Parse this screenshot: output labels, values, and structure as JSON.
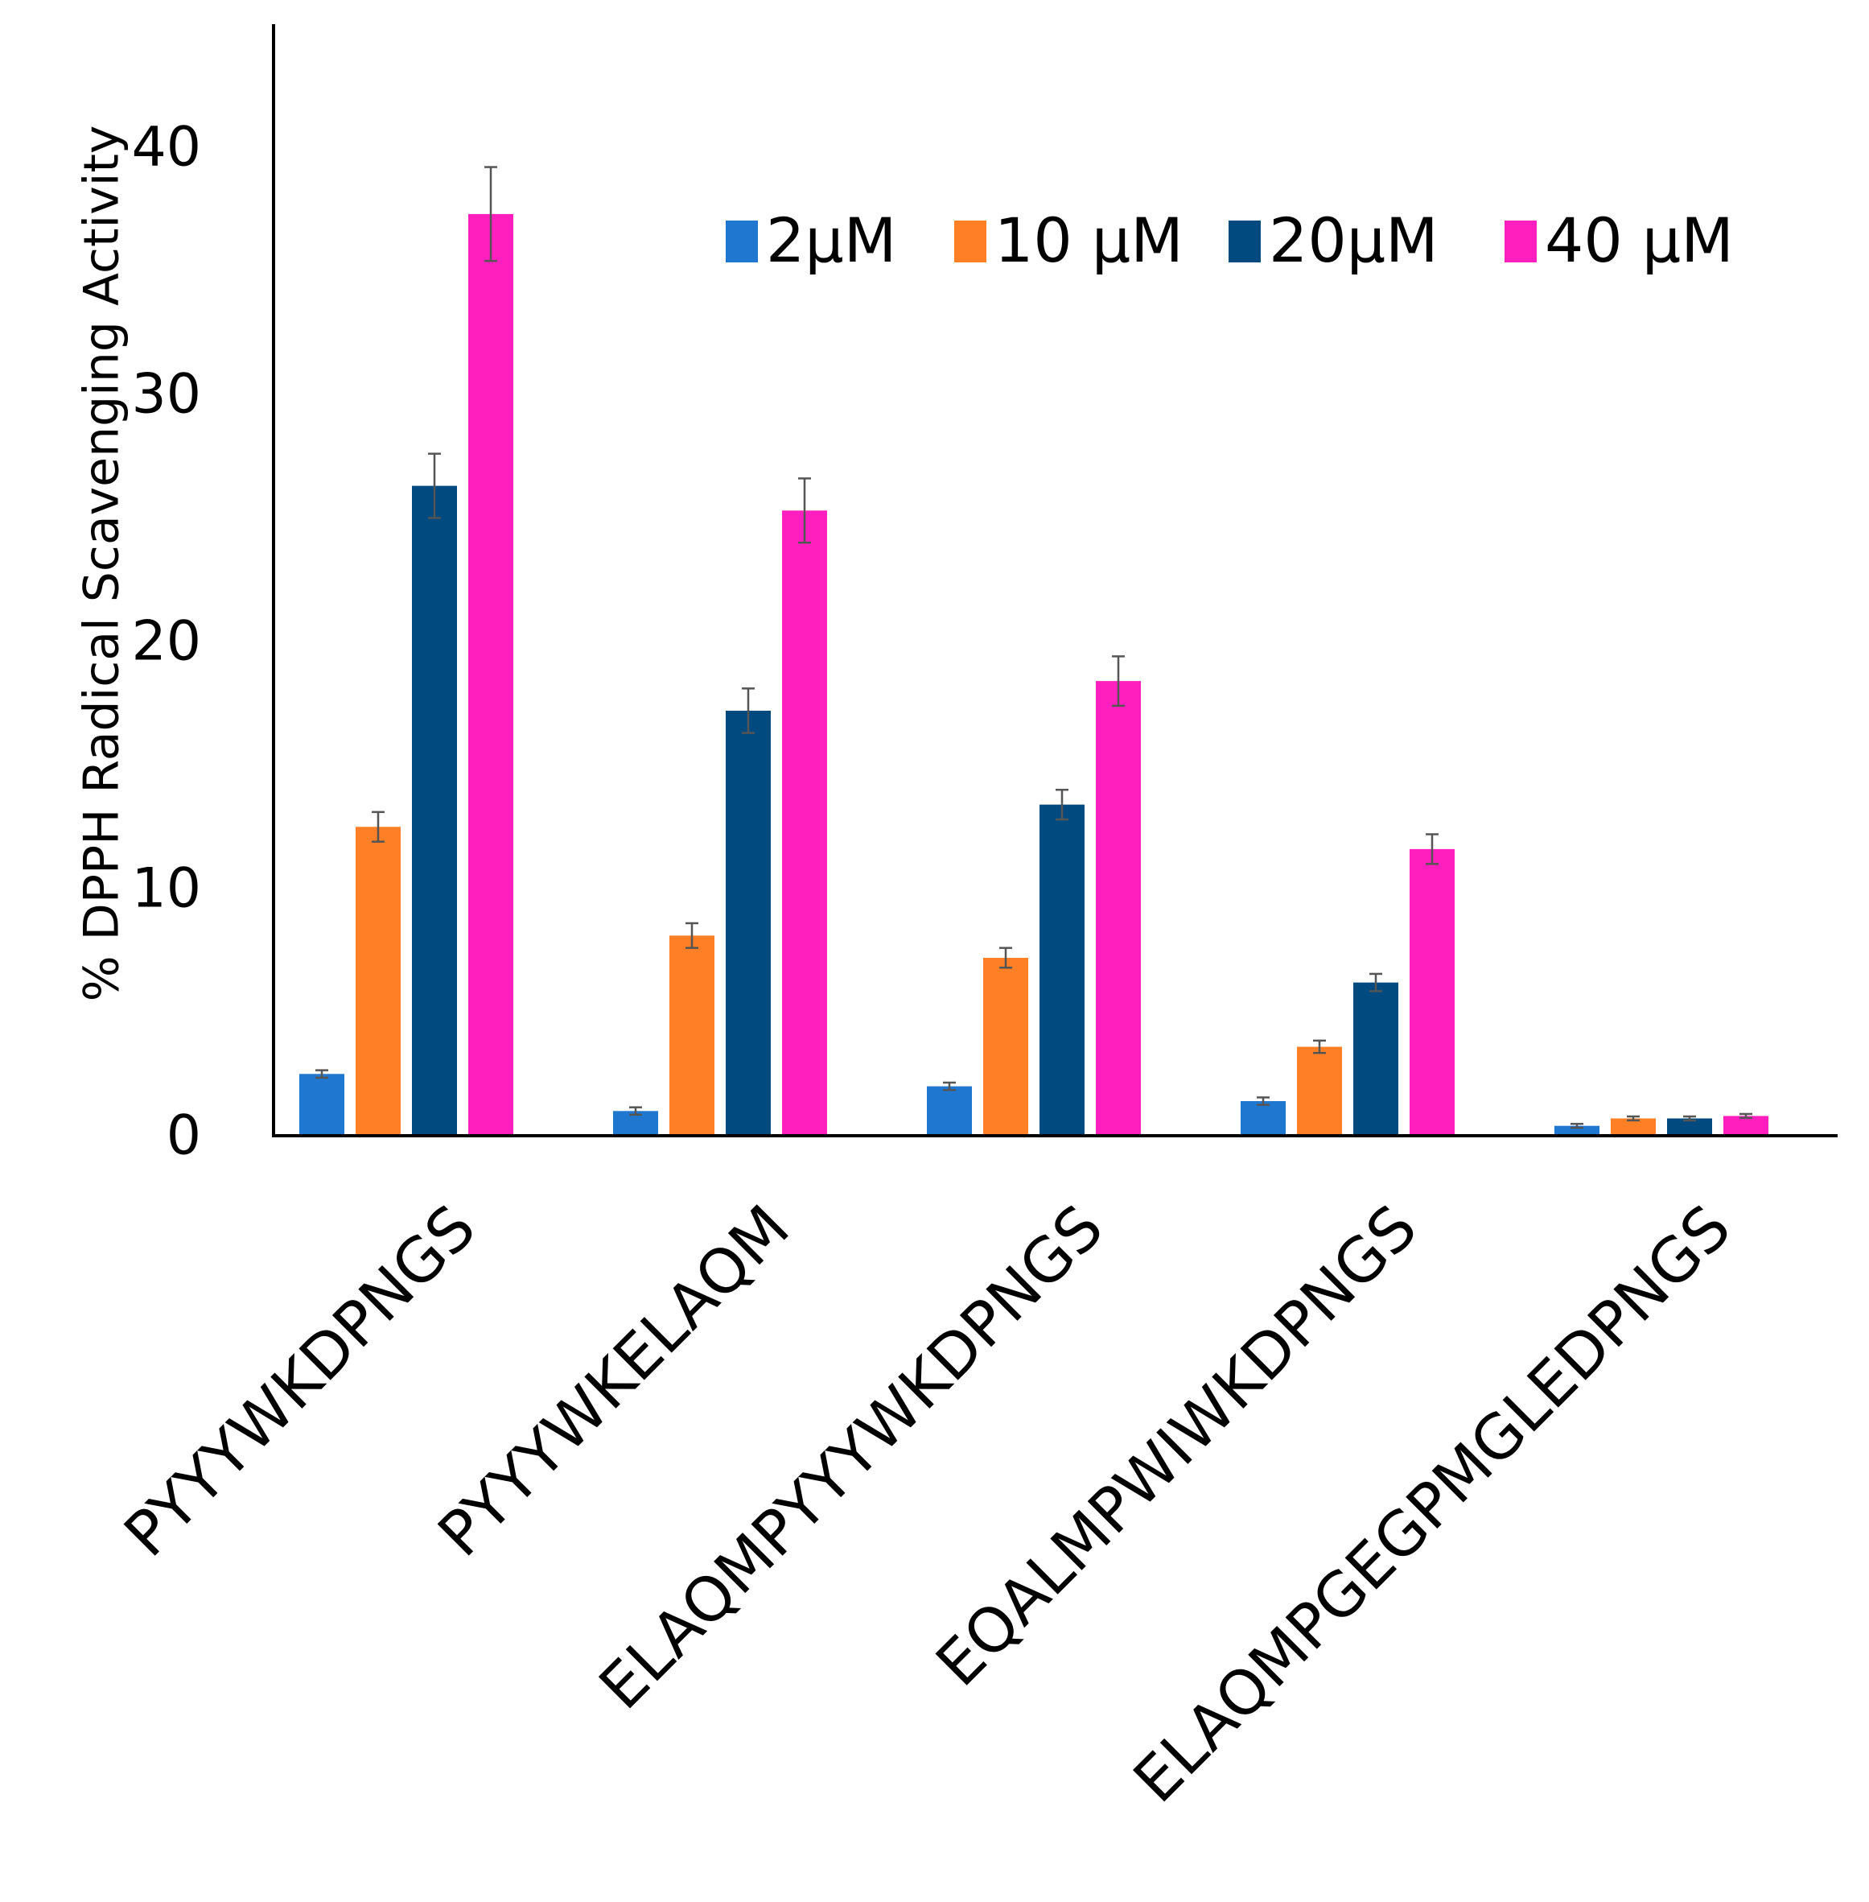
{
  "chart_data": {
    "type": "bar",
    "title": "",
    "xlabel": "",
    "ylabel": "% DPPH Radical Scavenging Activity",
    "ylim": [
      0,
      45
    ],
    "yticks": [
      0,
      10,
      20,
      30,
      40
    ],
    "grid": false,
    "legend_position": "top-right",
    "categories": [
      "PYYYWKDPNGS",
      "PYYYWKELAQM",
      "ELAQMPYYYWKDPNGS",
      "EQALMPWIWKDPNGS",
      "ELAQMPGEGPMGLEDPNGS"
    ],
    "series": [
      {
        "name": "2µM",
        "color": "#1f77d0",
        "values": [
          2.5,
          1.0,
          2.0,
          1.4,
          0.4
        ],
        "errors": [
          0.15,
          0.15,
          0.15,
          0.15,
          0.08
        ]
      },
      {
        "name": "10 µM",
        "color": "#ff7f27",
        "values": [
          12.5,
          8.1,
          7.2,
          3.6,
          0.7
        ],
        "errors": [
          0.6,
          0.5,
          0.4,
          0.25,
          0.08
        ]
      },
      {
        "name": "20µM",
        "color": "#004a7f",
        "values": [
          26.3,
          17.2,
          13.4,
          6.2,
          0.7
        ],
        "errors": [
          1.3,
          0.9,
          0.6,
          0.35,
          0.08
        ]
      },
      {
        "name": "40 µM",
        "color": "#ff1fbf",
        "values": [
          37.3,
          25.3,
          18.4,
          11.6,
          0.8
        ],
        "errors": [
          1.9,
          1.3,
          1.0,
          0.6,
          0.08
        ]
      }
    ]
  }
}
